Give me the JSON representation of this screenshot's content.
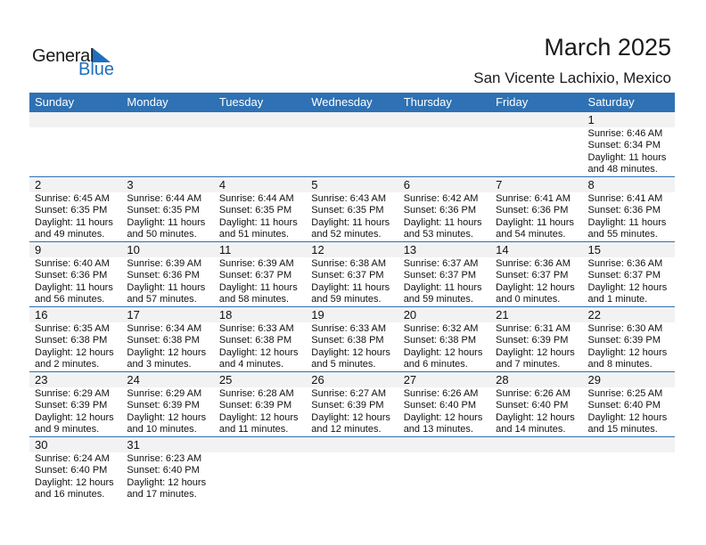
{
  "logo": {
    "line1": "General",
    "line2": "Blue",
    "color": "#1f6fbf"
  },
  "header": {
    "title": "March 2025",
    "location": "San Vicente Lachixio, Mexico"
  },
  "colors": {
    "header_bg": "#2e71b4",
    "date_band": "#f2f2f2"
  },
  "weekdays": [
    "Sunday",
    "Monday",
    "Tuesday",
    "Wednesday",
    "Thursday",
    "Friday",
    "Saturday"
  ],
  "weeks": [
    [
      null,
      null,
      null,
      null,
      null,
      null,
      {
        "day": "1",
        "sunrise": "Sunrise: 6:46 AM",
        "sunset": "Sunset: 6:34 PM",
        "daylight1": "Daylight: 11 hours",
        "daylight2": "and 48 minutes."
      }
    ],
    [
      {
        "day": "2",
        "sunrise": "Sunrise: 6:45 AM",
        "sunset": "Sunset: 6:35 PM",
        "daylight1": "Daylight: 11 hours",
        "daylight2": "and 49 minutes."
      },
      {
        "day": "3",
        "sunrise": "Sunrise: 6:44 AM",
        "sunset": "Sunset: 6:35 PM",
        "daylight1": "Daylight: 11 hours",
        "daylight2": "and 50 minutes."
      },
      {
        "day": "4",
        "sunrise": "Sunrise: 6:44 AM",
        "sunset": "Sunset: 6:35 PM",
        "daylight1": "Daylight: 11 hours",
        "daylight2": "and 51 minutes."
      },
      {
        "day": "5",
        "sunrise": "Sunrise: 6:43 AM",
        "sunset": "Sunset: 6:35 PM",
        "daylight1": "Daylight: 11 hours",
        "daylight2": "and 52 minutes."
      },
      {
        "day": "6",
        "sunrise": "Sunrise: 6:42 AM",
        "sunset": "Sunset: 6:36 PM",
        "daylight1": "Daylight: 11 hours",
        "daylight2": "and 53 minutes."
      },
      {
        "day": "7",
        "sunrise": "Sunrise: 6:41 AM",
        "sunset": "Sunset: 6:36 PM",
        "daylight1": "Daylight: 11 hours",
        "daylight2": "and 54 minutes."
      },
      {
        "day": "8",
        "sunrise": "Sunrise: 6:41 AM",
        "sunset": "Sunset: 6:36 PM",
        "daylight1": "Daylight: 11 hours",
        "daylight2": "and 55 minutes."
      }
    ],
    [
      {
        "day": "9",
        "sunrise": "Sunrise: 6:40 AM",
        "sunset": "Sunset: 6:36 PM",
        "daylight1": "Daylight: 11 hours",
        "daylight2": "and 56 minutes."
      },
      {
        "day": "10",
        "sunrise": "Sunrise: 6:39 AM",
        "sunset": "Sunset: 6:36 PM",
        "daylight1": "Daylight: 11 hours",
        "daylight2": "and 57 minutes."
      },
      {
        "day": "11",
        "sunrise": "Sunrise: 6:39 AM",
        "sunset": "Sunset: 6:37 PM",
        "daylight1": "Daylight: 11 hours",
        "daylight2": "and 58 minutes."
      },
      {
        "day": "12",
        "sunrise": "Sunrise: 6:38 AM",
        "sunset": "Sunset: 6:37 PM",
        "daylight1": "Daylight: 11 hours",
        "daylight2": "and 59 minutes."
      },
      {
        "day": "13",
        "sunrise": "Sunrise: 6:37 AM",
        "sunset": "Sunset: 6:37 PM",
        "daylight1": "Daylight: 11 hours",
        "daylight2": "and 59 minutes."
      },
      {
        "day": "14",
        "sunrise": "Sunrise: 6:36 AM",
        "sunset": "Sunset: 6:37 PM",
        "daylight1": "Daylight: 12 hours",
        "daylight2": "and 0 minutes."
      },
      {
        "day": "15",
        "sunrise": "Sunrise: 6:36 AM",
        "sunset": "Sunset: 6:37 PM",
        "daylight1": "Daylight: 12 hours",
        "daylight2": "and 1 minute."
      }
    ],
    [
      {
        "day": "16",
        "sunrise": "Sunrise: 6:35 AM",
        "sunset": "Sunset: 6:38 PM",
        "daylight1": "Daylight: 12 hours",
        "daylight2": "and 2 minutes."
      },
      {
        "day": "17",
        "sunrise": "Sunrise: 6:34 AM",
        "sunset": "Sunset: 6:38 PM",
        "daylight1": "Daylight: 12 hours",
        "daylight2": "and 3 minutes."
      },
      {
        "day": "18",
        "sunrise": "Sunrise: 6:33 AM",
        "sunset": "Sunset: 6:38 PM",
        "daylight1": "Daylight: 12 hours",
        "daylight2": "and 4 minutes."
      },
      {
        "day": "19",
        "sunrise": "Sunrise: 6:33 AM",
        "sunset": "Sunset: 6:38 PM",
        "daylight1": "Daylight: 12 hours",
        "daylight2": "and 5 minutes."
      },
      {
        "day": "20",
        "sunrise": "Sunrise: 6:32 AM",
        "sunset": "Sunset: 6:38 PM",
        "daylight1": "Daylight: 12 hours",
        "daylight2": "and 6 minutes."
      },
      {
        "day": "21",
        "sunrise": "Sunrise: 6:31 AM",
        "sunset": "Sunset: 6:39 PM",
        "daylight1": "Daylight: 12 hours",
        "daylight2": "and 7 minutes."
      },
      {
        "day": "22",
        "sunrise": "Sunrise: 6:30 AM",
        "sunset": "Sunset: 6:39 PM",
        "daylight1": "Daylight: 12 hours",
        "daylight2": "and 8 minutes."
      }
    ],
    [
      {
        "day": "23",
        "sunrise": "Sunrise: 6:29 AM",
        "sunset": "Sunset: 6:39 PM",
        "daylight1": "Daylight: 12 hours",
        "daylight2": "and 9 minutes."
      },
      {
        "day": "24",
        "sunrise": "Sunrise: 6:29 AM",
        "sunset": "Sunset: 6:39 PM",
        "daylight1": "Daylight: 12 hours",
        "daylight2": "and 10 minutes."
      },
      {
        "day": "25",
        "sunrise": "Sunrise: 6:28 AM",
        "sunset": "Sunset: 6:39 PM",
        "daylight1": "Daylight: 12 hours",
        "daylight2": "and 11 minutes."
      },
      {
        "day": "26",
        "sunrise": "Sunrise: 6:27 AM",
        "sunset": "Sunset: 6:39 PM",
        "daylight1": "Daylight: 12 hours",
        "daylight2": "and 12 minutes."
      },
      {
        "day": "27",
        "sunrise": "Sunrise: 6:26 AM",
        "sunset": "Sunset: 6:40 PM",
        "daylight1": "Daylight: 12 hours",
        "daylight2": "and 13 minutes."
      },
      {
        "day": "28",
        "sunrise": "Sunrise: 6:26 AM",
        "sunset": "Sunset: 6:40 PM",
        "daylight1": "Daylight: 12 hours",
        "daylight2": "and 14 minutes."
      },
      {
        "day": "29",
        "sunrise": "Sunrise: 6:25 AM",
        "sunset": "Sunset: 6:40 PM",
        "daylight1": "Daylight: 12 hours",
        "daylight2": "and 15 minutes."
      }
    ],
    [
      {
        "day": "30",
        "sunrise": "Sunrise: 6:24 AM",
        "sunset": "Sunset: 6:40 PM",
        "daylight1": "Daylight: 12 hours",
        "daylight2": "and 16 minutes."
      },
      {
        "day": "31",
        "sunrise": "Sunrise: 6:23 AM",
        "sunset": "Sunset: 6:40 PM",
        "daylight1": "Daylight: 12 hours",
        "daylight2": "and 17 minutes."
      },
      null,
      null,
      null,
      null,
      null
    ]
  ]
}
